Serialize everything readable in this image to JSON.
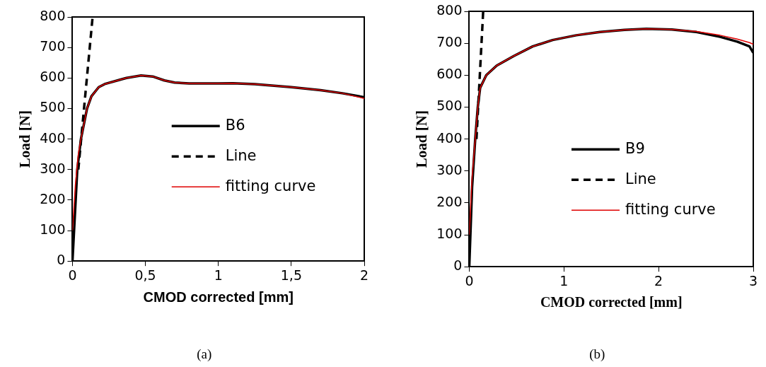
{
  "chart_data": [
    {
      "type": "line",
      "xlabel": "CMOD corrected [mm]",
      "ylabel": "Load [N]",
      "xlim": [
        0,
        2
      ],
      "ylim": [
        0,
        800
      ],
      "xticks": [
        0,
        {
          "value": 0.5,
          "label": "0,5"
        },
        1,
        {
          "value": 1.5,
          "label": "1,5"
        },
        2
      ],
      "yticks": [
        0,
        100,
        200,
        300,
        400,
        500,
        600,
        700,
        800
      ],
      "grid": false,
      "legend": "bottom right",
      "marker": "none",
      "annotations": [
        "(a)"
      ],
      "series": [
        {
          "name": "B6",
          "color": "#000000",
          "line_style": "solid",
          "x": [
            0,
            0.033,
            0.058,
            0.1,
            0.13,
            0.18,
            0.22,
            0.33,
            0.37,
            0.47,
            0.55,
            0.63,
            0.7,
            0.8,
            1.0,
            1.1,
            1.25,
            1.5,
            1.7,
            1.85,
            2.0
          ],
          "values": [
            0,
            300,
            400,
            500,
            540,
            570,
            580,
            595,
            600,
            608,
            605,
            592,
            585,
            582,
            582,
            583,
            580,
            570,
            560,
            550,
            537
          ]
        },
        {
          "name": "Line",
          "color": "#000000",
          "line_style": "dashed",
          "x": [
            0.04,
            0.138
          ],
          "values": [
            300,
            800
          ]
        },
        {
          "name": "fitting curve",
          "color": "#e00000",
          "line_style": "solid",
          "x": [
            0,
            0.02,
            0.04,
            0.058,
            0.1,
            0.13,
            0.18,
            0.22,
            0.33,
            0.37,
            0.47,
            0.55,
            0.63,
            0.7,
            0.8,
            1.0,
            1.1,
            1.25,
            1.5,
            1.7,
            1.85,
            2.0
          ],
          "values": [
            100,
            250,
            350,
            400,
            500,
            540,
            570,
            580,
            595,
            600,
            608,
            605,
            592,
            585,
            582,
            582,
            583,
            580,
            570,
            560,
            550,
            533
          ]
        }
      ]
    },
    {
      "type": "line",
      "xlabel": "CMOD corrected [mm]",
      "ylabel": "Load [N]",
      "xlim": [
        0,
        3
      ],
      "ylim": [
        0,
        800
      ],
      "xticks": [
        0,
        1,
        2,
        3
      ],
      "yticks": [
        0,
        100,
        200,
        300,
        400,
        500,
        600,
        700,
        800
      ],
      "grid": false,
      "legend": "bottom right",
      "marker": "none",
      "annotations": [
        "(b)"
      ],
      "series": [
        {
          "name": "B9",
          "color": "#000000",
          "line_style": "solid",
          "x": [
            0,
            0.03,
            0.063,
            0.09,
            0.115,
            0.18,
            0.29,
            0.47,
            0.67,
            0.88,
            1.13,
            1.38,
            1.64,
            1.87,
            2.14,
            2.4,
            2.65,
            2.83,
            2.96,
            3.0
          ],
          "values": [
            0,
            250,
            400,
            500,
            560,
            600,
            630,
            660,
            690,
            710,
            725,
            735,
            742,
            745,
            743,
            735,
            720,
            705,
            690,
            670
          ]
        },
        {
          "name": "Line",
          "color": "#000000",
          "line_style": "dashed",
          "x": [
            0.076,
            0.147
          ],
          "values": [
            400,
            800
          ]
        },
        {
          "name": "fitting curve",
          "color": "#e00000",
          "line_style": "solid",
          "x": [
            0,
            0.03,
            0.063,
            0.09,
            0.115,
            0.18,
            0.29,
            0.47,
            0.67,
            0.88,
            1.13,
            1.38,
            1.64,
            1.87,
            2.14,
            2.4,
            2.65,
            2.83,
            2.96,
            3.0
          ],
          "values": [
            100,
            280,
            400,
            500,
            560,
            600,
            630,
            660,
            690,
            710,
            725,
            735,
            742,
            745,
            743,
            737,
            725,
            713,
            702,
            697
          ]
        }
      ]
    }
  ]
}
